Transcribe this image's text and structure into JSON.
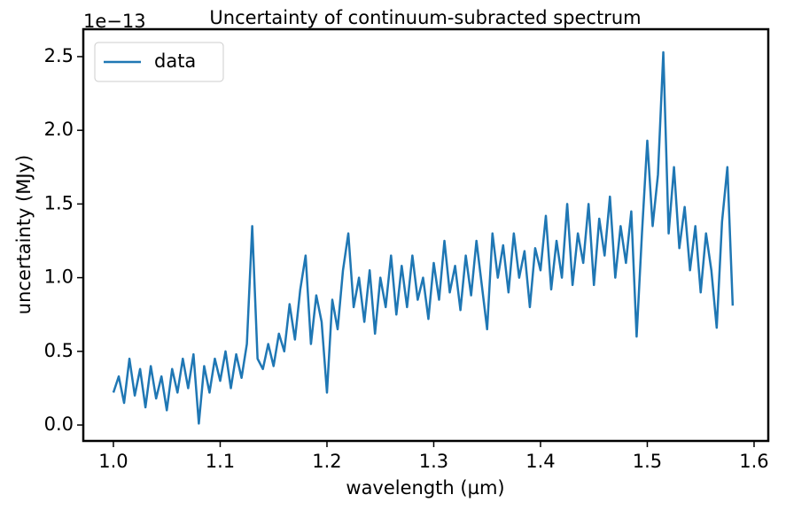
{
  "chart_data": {
    "type": "line",
    "title": "Uncertainty of continuum-subracted spectrum",
    "x_label": "wavelength (µm)",
    "y_label": "uncertainty (MJy)",
    "y_offset_label": "1e−13",
    "legend": "upper left",
    "x": [
      1.0,
      1.005,
      1.01,
      1.015,
      1.02,
      1.025,
      1.03,
      1.035,
      1.04,
      1.045,
      1.05,
      1.055,
      1.06,
      1.065,
      1.07,
      1.075,
      1.08,
      1.085,
      1.09,
      1.095,
      1.1,
      1.105,
      1.11,
      1.115,
      1.12,
      1.125,
      1.13,
      1.135,
      1.14,
      1.145,
      1.15,
      1.155,
      1.16,
      1.165,
      1.17,
      1.175,
      1.18,
      1.185,
      1.19,
      1.195,
      1.2,
      1.205,
      1.21,
      1.215,
      1.22,
      1.225,
      1.23,
      1.235,
      1.24,
      1.245,
      1.25,
      1.255,
      1.26,
      1.265,
      1.27,
      1.275,
      1.28,
      1.285,
      1.29,
      1.295,
      1.3,
      1.305,
      1.31,
      1.315,
      1.32,
      1.325,
      1.33,
      1.335,
      1.34,
      1.345,
      1.35,
      1.355,
      1.36,
      1.365,
      1.37,
      1.375,
      1.38,
      1.385,
      1.39,
      1.395,
      1.4,
      1.405,
      1.41,
      1.415,
      1.42,
      1.425,
      1.43,
      1.435,
      1.44,
      1.445,
      1.45,
      1.455,
      1.46,
      1.465,
      1.47,
      1.475,
      1.48,
      1.485,
      1.49,
      1.495,
      1.5,
      1.505,
      1.51,
      1.515,
      1.52,
      1.525,
      1.53,
      1.535,
      1.54,
      1.545,
      1.55,
      1.555,
      1.56,
      1.565,
      1.57,
      1.575,
      1.58
    ],
    "series": [
      {
        "name": "data",
        "color": "#1f77b4",
        "values": [
          0.22,
          0.33,
          0.15,
          0.45,
          0.2,
          0.38,
          0.12,
          0.4,
          0.18,
          0.33,
          0.1,
          0.38,
          0.22,
          0.45,
          0.25,
          0.48,
          0.01,
          0.4,
          0.22,
          0.45,
          0.3,
          0.5,
          0.25,
          0.48,
          0.32,
          0.55,
          1.35,
          0.45,
          0.38,
          0.55,
          0.4,
          0.62,
          0.5,
          0.82,
          0.58,
          0.92,
          1.15,
          0.55,
          0.88,
          0.7,
          0.22,
          0.85,
          0.65,
          1.05,
          1.3,
          0.8,
          1.0,
          0.7,
          1.05,
          0.62,
          1.0,
          0.8,
          1.15,
          0.75,
          1.08,
          0.8,
          1.15,
          0.85,
          1.0,
          0.72,
          1.1,
          0.85,
          1.25,
          0.9,
          1.08,
          0.78,
          1.15,
          0.88,
          1.25,
          0.95,
          0.65,
          1.3,
          1.0,
          1.22,
          0.9,
          1.3,
          1.0,
          1.18,
          0.8,
          1.2,
          1.05,
          1.42,
          0.92,
          1.25,
          1.0,
          1.5,
          0.95,
          1.3,
          1.1,
          1.5,
          0.95,
          1.4,
          1.15,
          1.55,
          1.0,
          1.35,
          1.1,
          1.45,
          0.6,
          1.3,
          1.93,
          1.35,
          1.7,
          2.53,
          1.3,
          1.75,
          1.2,
          1.48,
          1.05,
          1.35,
          0.9,
          1.3,
          1.05,
          0.66,
          1.38,
          1.75,
          0.81
        ]
      }
    ],
    "xlim": [
      0.9718,
      1.6133
    ],
    "ylim": [
      -0.108,
      2.686
    ],
    "xticks": [
      {
        "value": 1.0,
        "label": "1.0"
      },
      1.1,
      1.2,
      1.3,
      1.4,
      1.5,
      1.6
    ],
    "yticks": [
      {
        "value": 0,
        "label": "0.0"
      },
      0.5,
      {
        "value": 1,
        "label": "1.0"
      },
      1.5,
      {
        "value": 2,
        "label": "2.0"
      },
      2.5
    ]
  }
}
